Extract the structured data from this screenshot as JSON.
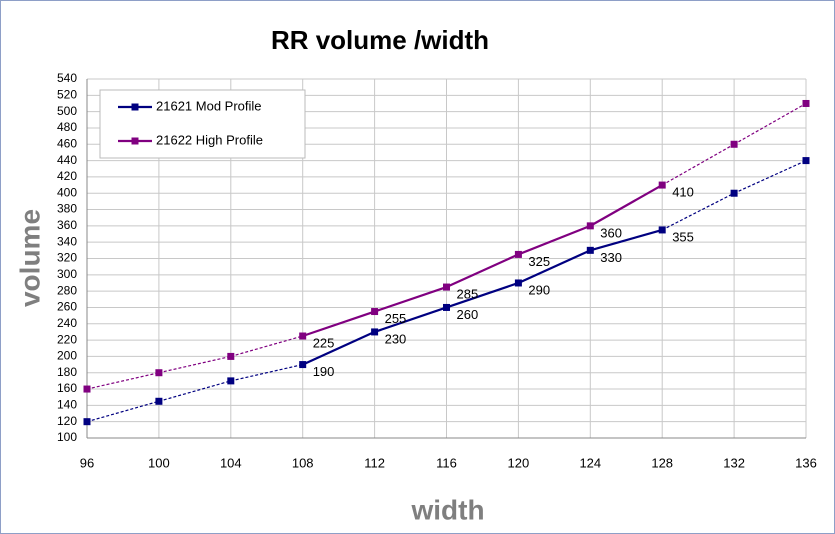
{
  "chart_data": {
    "type": "line",
    "title": "RR volume /width",
    "x_label": "width",
    "y_label": "volume",
    "x": [
      96,
      100,
      104,
      108,
      112,
      116,
      120,
      124,
      128,
      132,
      136
    ],
    "series": [
      {
        "name": "21621 Mod Profile",
        "color": "#000080",
        "values": [
          120,
          145,
          170,
          190,
          230,
          260,
          290,
          330,
          355,
          400,
          440
        ],
        "solid_range": [
          108,
          128
        ]
      },
      {
        "name": "21622 High Profile",
        "color": "#800080",
        "values": [
          160,
          180,
          200,
          225,
          255,
          285,
          325,
          360,
          410,
          460,
          510
        ],
        "solid_range": [
          108,
          128
        ]
      }
    ],
    "xlim": [
      96,
      136
    ],
    "xticks": [
      96,
      100,
      104,
      108,
      112,
      116,
      120,
      124,
      128,
      132,
      136
    ],
    "ylim": [
      100,
      540
    ],
    "yticks": [
      100,
      120,
      140,
      160,
      180,
      200,
      220,
      240,
      260,
      280,
      300,
      320,
      340,
      360,
      380,
      400,
      420,
      440,
      460,
      480,
      500,
      520,
      540
    ],
    "grid": true,
    "legend": "upper left"
  }
}
